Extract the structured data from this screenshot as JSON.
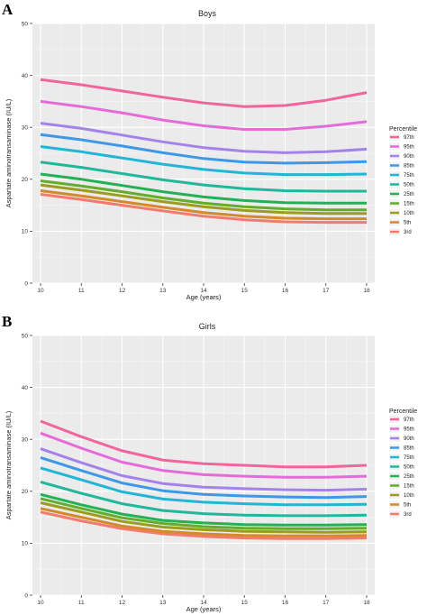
{
  "panels": [
    {
      "letter": "A",
      "title": "Boys",
      "xlabel": "Age (years)",
      "ylabel": "Aspartate aminotransaminase (IU/L)",
      "legend_title": "Percentile"
    },
    {
      "letter": "B",
      "title": "Girls",
      "xlabel": "Age (years)",
      "ylabel": "Aspartate aminotransaminase (IU/L)",
      "legend_title": "Percentile"
    }
  ],
  "colors": {
    "97th": "#f0659c",
    "95th": "#e66ad8",
    "90th": "#a582ea",
    "85th": "#3d98e8",
    "75th": "#21b5d6",
    "50th": "#1fb89a",
    "25th": "#22b153",
    "15th": "#63ad2b",
    "10th": "#9c9d20",
    "5th": "#d4892b",
    "3rd": "#f37a6e"
  },
  "chart_data": [
    {
      "type": "line",
      "title": "Boys",
      "xlabel": "Age (years)",
      "ylabel": "Aspartate aminotransaminase (IU/L)",
      "x": [
        10,
        11,
        12,
        13,
        14,
        15,
        16,
        17,
        18
      ],
      "xlim": [
        9.8,
        18.2
      ],
      "ylim": [
        0,
        50
      ],
      "yticks": [
        0,
        10,
        20,
        30,
        40,
        50
      ],
      "grid": true,
      "legend_position": "right",
      "series": [
        {
          "name": "97th",
          "values": [
            39.2,
            38.2,
            37.0,
            35.8,
            34.7,
            34.0,
            34.2,
            35.2,
            36.7
          ]
        },
        {
          "name": "95th",
          "values": [
            35.0,
            34.0,
            32.8,
            31.4,
            30.3,
            29.6,
            29.6,
            30.2,
            31.1
          ]
        },
        {
          "name": "90th",
          "values": [
            30.8,
            29.8,
            28.5,
            27.2,
            26.1,
            25.4,
            25.1,
            25.3,
            25.8
          ]
        },
        {
          "name": "85th",
          "values": [
            28.6,
            27.6,
            26.4,
            25.1,
            24.0,
            23.3,
            23.1,
            23.2,
            23.4
          ]
        },
        {
          "name": "75th",
          "values": [
            26.3,
            25.3,
            24.1,
            22.9,
            21.9,
            21.2,
            20.9,
            20.9,
            21.0
          ]
        },
        {
          "name": "50th",
          "values": [
            23.3,
            22.3,
            21.1,
            19.9,
            18.9,
            18.2,
            17.8,
            17.7,
            17.7
          ]
        },
        {
          "name": "25th",
          "values": [
            21.0,
            20.0,
            18.8,
            17.6,
            16.6,
            15.9,
            15.5,
            15.4,
            15.4
          ]
        },
        {
          "name": "15th",
          "values": [
            19.7,
            18.7,
            17.6,
            16.4,
            15.4,
            14.7,
            14.3,
            14.1,
            14.1
          ]
        },
        {
          "name": "10th",
          "values": [
            18.9,
            17.9,
            16.8,
            15.7,
            14.7,
            14.0,
            13.6,
            13.4,
            13.4
          ]
        },
        {
          "name": "5th",
          "values": [
            17.8,
            16.8,
            15.7,
            14.6,
            13.6,
            12.9,
            12.5,
            12.4,
            12.4
          ]
        },
        {
          "name": "3rd",
          "values": [
            17.1,
            16.1,
            15.0,
            13.9,
            12.9,
            12.2,
            11.8,
            11.7,
            11.7
          ]
        }
      ]
    },
    {
      "type": "line",
      "title": "Girls",
      "xlabel": "Age (years)",
      "ylabel": "Aspartate aminotransaminase (IU/L)",
      "x": [
        10,
        11,
        12,
        13,
        14,
        15,
        16,
        17,
        18
      ],
      "xlim": [
        9.8,
        18.2
      ],
      "ylim": [
        0,
        50
      ],
      "yticks": [
        0,
        10,
        20,
        30,
        40,
        50
      ],
      "grid": true,
      "legend_position": "right",
      "series": [
        {
          "name": "97th",
          "values": [
            33.5,
            30.5,
            27.8,
            26.0,
            25.3,
            25.0,
            24.7,
            24.7,
            25.0
          ]
        },
        {
          "name": "95th",
          "values": [
            31.2,
            28.3,
            25.6,
            24.0,
            23.2,
            22.9,
            22.7,
            22.7,
            22.9
          ]
        },
        {
          "name": "90th",
          "values": [
            28.2,
            25.5,
            23.0,
            21.5,
            20.8,
            20.5,
            20.3,
            20.2,
            20.4
          ]
        },
        {
          "name": "85th",
          "values": [
            26.5,
            24.0,
            21.6,
            20.1,
            19.4,
            19.1,
            18.9,
            18.8,
            19.0
          ]
        },
        {
          "name": "75th",
          "values": [
            24.5,
            22.2,
            19.9,
            18.5,
            17.9,
            17.6,
            17.4,
            17.4,
            17.5
          ]
        },
        {
          "name": "50th",
          "values": [
            21.8,
            19.6,
            17.6,
            16.3,
            15.7,
            15.4,
            15.3,
            15.3,
            15.4
          ]
        },
        {
          "name": "25th",
          "values": [
            19.4,
            17.4,
            15.6,
            14.4,
            13.9,
            13.6,
            13.5,
            13.5,
            13.6
          ]
        },
        {
          "name": "15th",
          "values": [
            18.6,
            16.7,
            14.9,
            13.8,
            13.2,
            12.9,
            12.8,
            12.8,
            12.9
          ]
        },
        {
          "name": "10th",
          "values": [
            17.8,
            16.0,
            14.2,
            13.1,
            12.6,
            12.3,
            12.2,
            12.1,
            12.2
          ]
        },
        {
          "name": "5th",
          "values": [
            16.7,
            15.0,
            13.3,
            12.3,
            11.8,
            11.5,
            11.4,
            11.4,
            11.5
          ]
        },
        {
          "name": "3rd",
          "values": [
            16.0,
            14.3,
            12.8,
            11.8,
            11.3,
            11.0,
            10.9,
            10.9,
            11.0
          ]
        }
      ]
    }
  ]
}
